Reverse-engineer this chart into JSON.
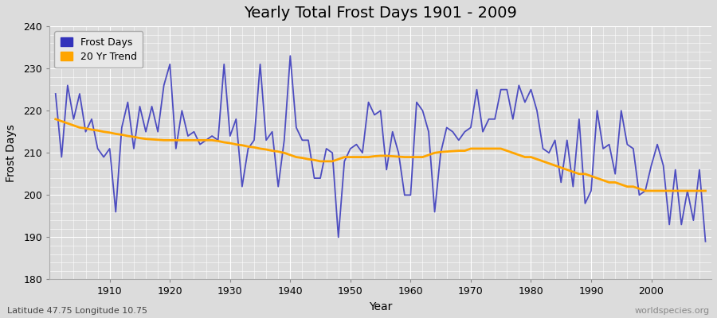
{
  "title": "Yearly Total Frost Days 1901 - 2009",
  "xlabel": "Year",
  "ylabel": "Frost Days",
  "subtitle": "Latitude 47.75 Longitude 10.75",
  "watermark": "worldspecies.org",
  "ylim": [
    180,
    240
  ],
  "yticks": [
    180,
    190,
    200,
    210,
    220,
    230,
    240
  ],
  "xlim": [
    1900,
    2010
  ],
  "xticks": [
    1910,
    1920,
    1930,
    1940,
    1950,
    1960,
    1970,
    1980,
    1990,
    2000
  ],
  "years": [
    1901,
    1902,
    1903,
    1904,
    1905,
    1906,
    1907,
    1908,
    1909,
    1910,
    1911,
    1912,
    1913,
    1914,
    1915,
    1916,
    1917,
    1918,
    1919,
    1920,
    1921,
    1922,
    1923,
    1924,
    1925,
    1926,
    1927,
    1928,
    1929,
    1930,
    1931,
    1932,
    1933,
    1934,
    1935,
    1936,
    1937,
    1938,
    1939,
    1940,
    1941,
    1942,
    1943,
    1944,
    1945,
    1946,
    1947,
    1948,
    1949,
    1950,
    1951,
    1952,
    1953,
    1954,
    1955,
    1956,
    1957,
    1958,
    1959,
    1960,
    1961,
    1962,
    1963,
    1964,
    1965,
    1966,
    1967,
    1968,
    1969,
    1970,
    1971,
    1972,
    1973,
    1974,
    1975,
    1976,
    1977,
    1978,
    1979,
    1980,
    1981,
    1982,
    1983,
    1984,
    1985,
    1986,
    1987,
    1988,
    1989,
    1990,
    1991,
    1992,
    1993,
    1994,
    1995,
    1996,
    1997,
    1998,
    1999,
    2000,
    2001,
    2002,
    2003,
    2004,
    2005,
    2006,
    2007,
    2008,
    2009
  ],
  "frost_days": [
    224,
    209,
    226,
    218,
    224,
    215,
    218,
    211,
    209,
    211,
    196,
    216,
    222,
    211,
    221,
    215,
    221,
    215,
    226,
    231,
    211,
    220,
    214,
    215,
    212,
    213,
    214,
    213,
    231,
    214,
    218,
    202,
    211,
    213,
    231,
    213,
    215,
    202,
    213,
    233,
    216,
    213,
    213,
    204,
    204,
    211,
    210,
    190,
    208,
    211,
    212,
    210,
    222,
    219,
    220,
    206,
    215,
    210,
    200,
    200,
    222,
    220,
    215,
    196,
    210,
    216,
    215,
    213,
    215,
    216,
    225,
    215,
    218,
    218,
    225,
    225,
    218,
    226,
    222,
    225,
    220,
    211,
    210,
    213,
    203,
    213,
    202,
    218,
    198,
    201,
    220,
    211,
    212,
    205,
    220,
    212,
    211,
    200,
    201,
    207,
    212,
    207,
    193,
    206,
    193,
    201,
    194,
    206,
    189
  ],
  "trend": [
    218,
    217.5,
    217,
    216.5,
    216,
    215.8,
    215.5,
    215.3,
    215,
    214.8,
    214.5,
    214.3,
    214,
    213.8,
    213.5,
    213.3,
    213.2,
    213.1,
    213,
    213,
    213,
    213,
    213,
    213,
    213,
    213,
    213,
    212.8,
    212.5,
    212.3,
    212,
    211.8,
    211.5,
    211.3,
    211,
    210.8,
    210.5,
    210.3,
    210,
    209.5,
    209,
    208.8,
    208.5,
    208.3,
    208,
    208,
    208,
    208.5,
    209,
    209,
    209,
    209,
    209,
    209.2,
    209.3,
    209.3,
    209.2,
    209.1,
    209,
    209,
    209,
    209,
    209.5,
    210,
    210.2,
    210.3,
    210.4,
    210.5,
    210.5,
    211,
    211,
    211,
    211,
    211,
    211,
    210.5,
    210,
    209.5,
    209,
    209,
    208.5,
    208,
    207.5,
    207,
    206.5,
    206,
    205.5,
    205,
    205,
    204.5,
    204,
    203.5,
    203,
    203,
    202.5,
    202,
    202,
    201.5,
    201,
    201,
    201,
    201,
    201,
    201,
    201,
    201,
    201,
    201,
    201
  ],
  "line_color": "#3333bb",
  "line_alpha": 0.85,
  "trend_color": "#FFA500",
  "bg_color": "#dcdcdc",
  "plot_bg_color": "#dcdcdc",
  "grid_color": "#ffffff",
  "legend_bg": "#e8e8e8",
  "title_fontsize": 14,
  "label_fontsize": 10,
  "tick_fontsize": 9,
  "legend_fontsize": 9
}
